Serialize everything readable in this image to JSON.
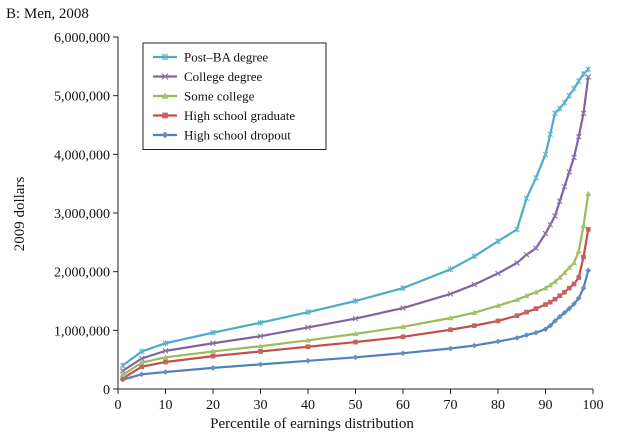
{
  "panel_label": "B: Men, 2008",
  "chart_data": {
    "type": "line",
    "title": "",
    "xlabel": "Percentile of earnings distribution",
    "ylabel": "2009 dollars",
    "xlim": [
      0,
      100
    ],
    "ylim": [
      0,
      6000000
    ],
    "x_ticks": [
      0,
      10,
      20,
      30,
      40,
      50,
      60,
      70,
      80,
      90,
      100
    ],
    "x_tick_labels": [
      "0",
      "10",
      "20",
      "30",
      "40",
      "50",
      "60",
      "70",
      "80",
      "90",
      "100"
    ],
    "y_ticks": [
      0,
      1000000,
      2000000,
      3000000,
      4000000,
      5000000,
      6000000
    ],
    "y_tick_labels": [
      "0",
      "1,000,000",
      "2,000,000",
      "3,000,000",
      "4,000,000",
      "5,000,000",
      "6,000,000"
    ],
    "grid": false,
    "legend_position": "top-left",
    "x_samples": [
      1,
      5,
      10,
      20,
      30,
      40,
      50,
      60,
      70,
      75,
      80,
      84,
      86,
      88,
      90,
      91,
      92,
      93,
      94,
      95,
      96,
      97,
      98,
      99
    ],
    "series": [
      {
        "name": "Post–BA degree",
        "color": "#4bacc6",
        "marker": "star",
        "values": [
          400000,
          640000,
          780000,
          960000,
          1130000,
          1310000,
          1500000,
          1720000,
          2040000,
          2260000,
          2520000,
          2720000,
          3250000,
          3600000,
          4000000,
          4340000,
          4700000,
          4780000,
          4880000,
          5000000,
          5120000,
          5250000,
          5370000,
          5450000
        ]
      },
      {
        "name": "College degree",
        "color": "#8064a2",
        "marker": "x",
        "values": [
          310000,
          520000,
          650000,
          780000,
          900000,
          1050000,
          1200000,
          1380000,
          1620000,
          1780000,
          1970000,
          2150000,
          2290000,
          2400000,
          2650000,
          2800000,
          2950000,
          3200000,
          3450000,
          3700000,
          3950000,
          4300000,
          4700000,
          5320000
        ]
      },
      {
        "name": "Some college",
        "color": "#9bbb59",
        "marker": "triangle",
        "values": [
          240000,
          450000,
          540000,
          640000,
          730000,
          830000,
          940000,
          1060000,
          1210000,
          1300000,
          1420000,
          1520000,
          1590000,
          1650000,
          1720000,
          1770000,
          1830000,
          1900000,
          1980000,
          2070000,
          2150000,
          2350000,
          2780000,
          3330000
        ]
      },
      {
        "name": "High school graduate",
        "color": "#c0504d",
        "marker": "square",
        "values": [
          180000,
          380000,
          460000,
          560000,
          640000,
          720000,
          800000,
          890000,
          1010000,
          1080000,
          1160000,
          1250000,
          1310000,
          1370000,
          1440000,
          1480000,
          1530000,
          1590000,
          1650000,
          1720000,
          1790000,
          1900000,
          2250000,
          2720000
        ]
      },
      {
        "name": "High school dropout",
        "color": "#4f81bd",
        "marker": "diamond",
        "values": [
          160000,
          250000,
          290000,
          360000,
          420000,
          480000,
          540000,
          610000,
          690000,
          740000,
          810000,
          870000,
          920000,
          960000,
          1020000,
          1080000,
          1160000,
          1230000,
          1300000,
          1370000,
          1450000,
          1550000,
          1720000,
          2020000
        ]
      }
    ]
  }
}
